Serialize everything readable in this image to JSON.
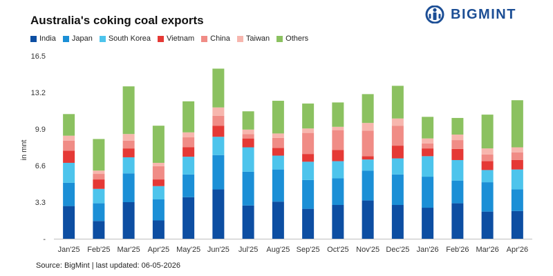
{
  "header": {
    "title": "Australia's coking coal exports",
    "brand": "BIGMINT"
  },
  "footer": {
    "source": "Source: BigMint | last updated: 06-05-2026"
  },
  "chart_data": {
    "type": "bar",
    "stacked": true,
    "title": "Australia's coking coal exports",
    "xlabel": "",
    "ylabel": "in mnt",
    "ylim": [
      0,
      16.5
    ],
    "yticks": [
      0,
      3.3,
      6.6,
      9.9,
      13.2,
      16.5
    ],
    "ytick_labels": [
      "-",
      "3.3",
      "6.6",
      "9.9",
      "13.2",
      "16.5"
    ],
    "grid": false,
    "legend_position": "top-left",
    "categories": [
      "Jan'25",
      "Feb'25",
      "Mar'25",
      "Apr'25",
      "May'25",
      "Jun'25",
      "Jul'25",
      "Aug'25",
      "Sep'25",
      "Oct'25",
      "Nov'25",
      "Dec'25",
      "Jan'26",
      "Feb'26",
      "Mar'26",
      "Apr'26"
    ],
    "series": [
      {
        "name": "India",
        "color": "#0d4ea2",
        "values": [
          2.95,
          1.6,
          3.3,
          1.65,
          3.75,
          4.45,
          3.0,
          3.35,
          2.7,
          3.05,
          3.45,
          3.05,
          2.8,
          3.2,
          2.45,
          2.5
        ]
      },
      {
        "name": "Japan",
        "color": "#1b8fd6",
        "values": [
          2.1,
          1.6,
          2.6,
          1.9,
          2.05,
          3.1,
          3.05,
          2.9,
          2.6,
          2.4,
          2.7,
          2.75,
          2.8,
          2.05,
          2.65,
          1.95
        ]
      },
      {
        "name": "South Korea",
        "color": "#4dc4ec",
        "values": [
          1.8,
          1.3,
          1.45,
          1.2,
          1.6,
          1.65,
          2.2,
          1.25,
          1.65,
          1.55,
          1.0,
          1.45,
          1.85,
          1.85,
          1.1,
          1.8
        ]
      },
      {
        "name": "Vietnam",
        "color": "#e53935",
        "values": [
          1.1,
          0.85,
          0.8,
          0.6,
          0.85,
          1.0,
          0.8,
          0.7,
          0.7,
          1.0,
          0.3,
          1.15,
          0.7,
          1.0,
          0.8,
          0.85
        ]
      },
      {
        "name": "China",
        "color": "#f08c86",
        "values": [
          0.9,
          0.5,
          0.7,
          1.2,
          0.9,
          0.9,
          0.4,
          0.9,
          1.9,
          1.8,
          2.3,
          1.8,
          0.45,
          0.8,
          0.6,
          0.7
        ]
      },
      {
        "name": "Taiwan",
        "color": "#f7b6ae",
        "values": [
          0.45,
          0.3,
          0.6,
          0.3,
          0.45,
          0.75,
          0.4,
          0.4,
          0.4,
          0.3,
          0.7,
          0.65,
          0.45,
          0.5,
          0.55,
          0.45
        ]
      },
      {
        "name": "Others",
        "color": "#8bc160",
        "values": [
          1.95,
          2.85,
          4.3,
          3.35,
          2.8,
          3.5,
          1.65,
          2.95,
          2.25,
          2.2,
          2.6,
          2.95,
          1.95,
          1.5,
          3.05,
          4.25
        ]
      }
    ]
  }
}
